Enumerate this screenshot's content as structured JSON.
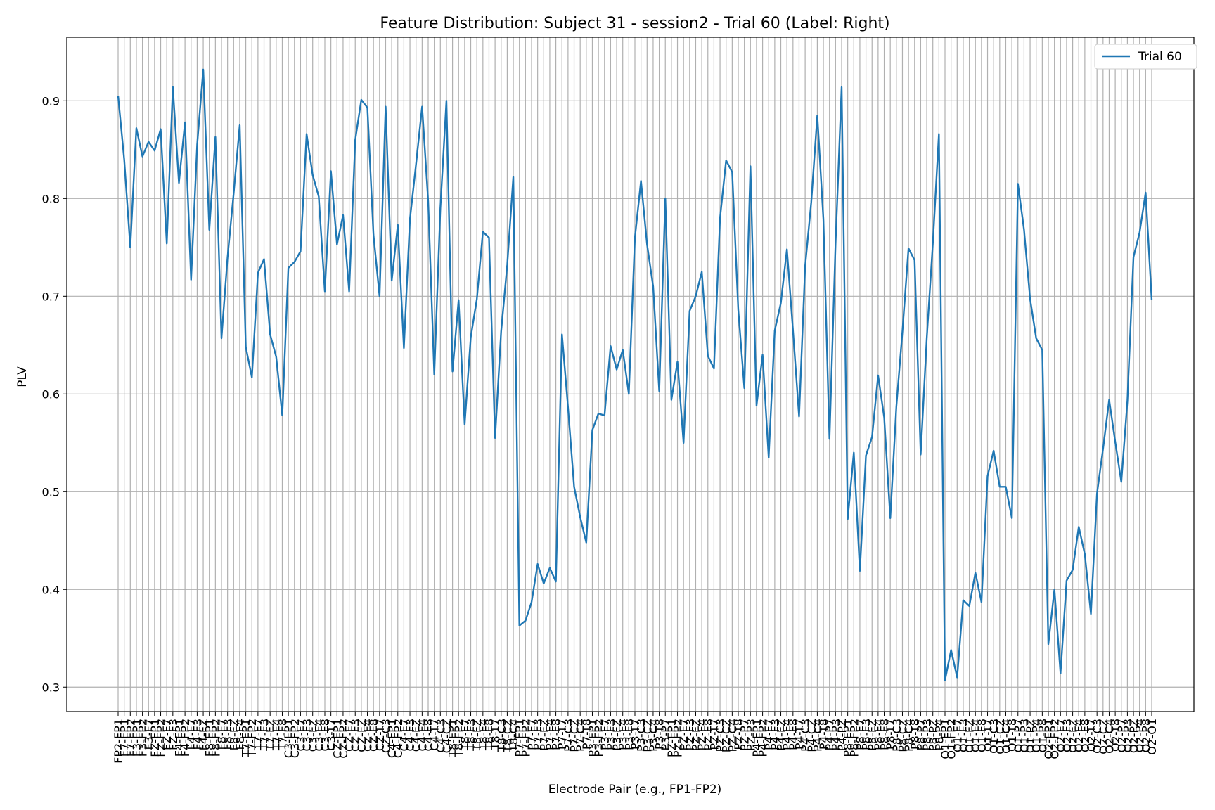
{
  "chart_data": {
    "type": "line",
    "title": "Feature Distribution: Subject 31 - session2 - Trial 60 (Label: Right)",
    "xlabel": "Electrode Pair (e.g., FP1-FP2)",
    "ylabel": "PLV",
    "ylim": [
      0.275,
      0.965
    ],
    "yticks": [
      0.3,
      0.4,
      0.5,
      0.6,
      0.7,
      0.8,
      0.9
    ],
    "ytick_labels": [
      "0.3",
      "0.4",
      "0.5",
      "0.6",
      "0.7",
      "0.8",
      "0.9"
    ],
    "grid": true,
    "legend_position": "top-right",
    "color": "#1f77b4",
    "xtick_labels": [
      "FP2-FP1",
      "F7-FP1",
      "F7-FP2",
      "F3-FP1",
      "F3-FP2",
      "F3-F7",
      "FZ-FP1",
      "FZ-FP2",
      "FZ-F7",
      "FZ-F3",
      "F4-FP1",
      "F4-FP2",
      "F4-F7",
      "F4-F3",
      "F4-FZ",
      "F8-FP1",
      "F8-FP2",
      "F8-F7",
      "F8-F3",
      "F8-FZ",
      "F8-F4",
      "T7-FP1",
      "T7-FP2",
      "T7-F7",
      "T7-F3",
      "T7-FZ",
      "T7-F4",
      "T7-F8",
      "C3-FP1",
      "C3-FP2",
      "C3-F7",
      "C3-F3",
      "C3-FZ",
      "C3-F4",
      "C3-F8",
      "C3-T7",
      "CZ-FP1",
      "CZ-FP2",
      "CZ-F7",
      "CZ-F3",
      "CZ-FZ",
      "CZ-F4",
      "CZ-F8",
      "CZ-T7",
      "CZ-C3",
      "C4-FP1",
      "C4-FP2",
      "C4-F7",
      "C4-F3",
      "C4-FZ",
      "C4-F4",
      "C4-F8",
      "C4-T7",
      "C4-C3",
      "C4-CZ",
      "T8-FP1",
      "T8-FP2",
      "T8-F7",
      "T8-F3",
      "T8-FZ",
      "T8-F4",
      "T8-F8",
      "T8-T7",
      "T8-C3",
      "T8-CZ",
      "T8-C4",
      "P7-FP1",
      "P7-FP2",
      "P7-F7",
      "P7-F3",
      "P7-FZ",
      "P7-F4",
      "P7-F8",
      "P7-T7",
      "P7-C3",
      "P7-CZ",
      "P7-C4",
      "P7-T8",
      "P3-FP1",
      "P3-FP2",
      "P3-F7",
      "P3-F3",
      "P3-FZ",
      "P3-F4",
      "P3-F8",
      "P3-T7",
      "P3-C3",
      "P3-CZ",
      "P3-C4",
      "P3-T8",
      "P3-P7",
      "PZ-FP1",
      "PZ-FP2",
      "PZ-F7",
      "PZ-F3",
      "PZ-FZ",
      "PZ-F4",
      "PZ-F8",
      "PZ-T7",
      "PZ-C3",
      "PZ-CZ",
      "PZ-C4",
      "PZ-T8",
      "PZ-P7",
      "PZ-P3",
      "P4-FP1",
      "P4-FP2",
      "P4-F7",
      "P4-F3",
      "P4-FZ",
      "P4-F4",
      "P4-F8",
      "P4-T7",
      "P4-C3",
      "P4-CZ",
      "P4-C4",
      "P4-T8",
      "P4-P7",
      "P4-P3",
      "P4-PZ",
      "P8-FP1",
      "P8-FP2",
      "P8-F7",
      "P8-F3",
      "P8-FZ",
      "P8-F4",
      "P8-F8",
      "P8-T7",
      "P8-C3",
      "P8-CZ",
      "P8-C4",
      "P8-T8",
      "P8-P7",
      "P8-P3",
      "P8-PZ",
      "P8-P4",
      "O1-FP1",
      "O1-FP2",
      "O1-F7",
      "O1-F3",
      "O1-FZ",
      "O1-F4",
      "O1-F8",
      "O1-T7",
      "O1-C3",
      "O1-CZ",
      "O1-C4",
      "O1-T8",
      "O1-P7",
      "O1-P3",
      "O1-PZ",
      "O1-P4",
      "O1-P8",
      "O2-FP1",
      "O2-FP2",
      "O2-F7",
      "O2-F3",
      "O2-FZ",
      "O2-F4",
      "O2-F8",
      "O2-T7",
      "O2-C3",
      "O2-CZ",
      "O2-C4",
      "O2-T8",
      "O2-P7",
      "O2-P3",
      "O2-PZ",
      "O2-P4",
      "O2-P8",
      "O2-O1"
    ],
    "series": [
      {
        "name": "Trial 60",
        "values": [
          0.905,
          0.84,
          0.75,
          0.872,
          0.843,
          0.858,
          0.849,
          0.871,
          0.754,
          0.914,
          0.816,
          0.878,
          0.717,
          0.855,
          0.932,
          0.768,
          0.863,
          0.657,
          0.74,
          0.805,
          0.875,
          0.648,
          0.617,
          0.724,
          0.738,
          0.661,
          0.638,
          0.578,
          0.729,
          0.735,
          0.746,
          0.866,
          0.824,
          0.802,
          0.705,
          0.828,
          0.753,
          0.783,
          0.705,
          0.86,
          0.901,
          0.893,
          0.763,
          0.7,
          0.894,
          0.716,
          0.773,
          0.647,
          0.779,
          0.835,
          0.894,
          0.797,
          0.62,
          0.79,
          0.9,
          0.623,
          0.696,
          0.569,
          0.658,
          0.697,
          0.766,
          0.76,
          0.555,
          0.664,
          0.732,
          0.822,
          0.363,
          0.368,
          0.387,
          0.426,
          0.406,
          0.422,
          0.408,
          0.661,
          0.586,
          0.505,
          0.474,
          0.448,
          0.563,
          0.58,
          0.578,
          0.649,
          0.625,
          0.645,
          0.6,
          0.76,
          0.818,
          0.753,
          0.71,
          0.603,
          0.8,
          0.594,
          0.633,
          0.55,
          0.685,
          0.7,
          0.725,
          0.639,
          0.626,
          0.78,
          0.839,
          0.827,
          0.686,
          0.606,
          0.833,
          0.588,
          0.64,
          0.535,
          0.665,
          0.693,
          0.748,
          0.665,
          0.577,
          0.731,
          0.796,
          0.885,
          0.779,
          0.554,
          0.754,
          0.914,
          0.472,
          0.54,
          0.419,
          0.537,
          0.556,
          0.619,
          0.576,
          0.473,
          0.587,
          0.664,
          0.749,
          0.737,
          0.538,
          0.657,
          0.754,
          0.866,
          0.307,
          0.338,
          0.31,
          0.389,
          0.383,
          0.417,
          0.387,
          0.516,
          0.542,
          0.505,
          0.505,
          0.473,
          0.815,
          0.768,
          0.697,
          0.657,
          0.645,
          0.344,
          0.4,
          0.314,
          0.409,
          0.42,
          0.464,
          0.436,
          0.375,
          0.498,
          0.544,
          0.594,
          0.551,
          0.51,
          0.593,
          0.74,
          0.765,
          0.806,
          0.696
        ]
      }
    ]
  }
}
